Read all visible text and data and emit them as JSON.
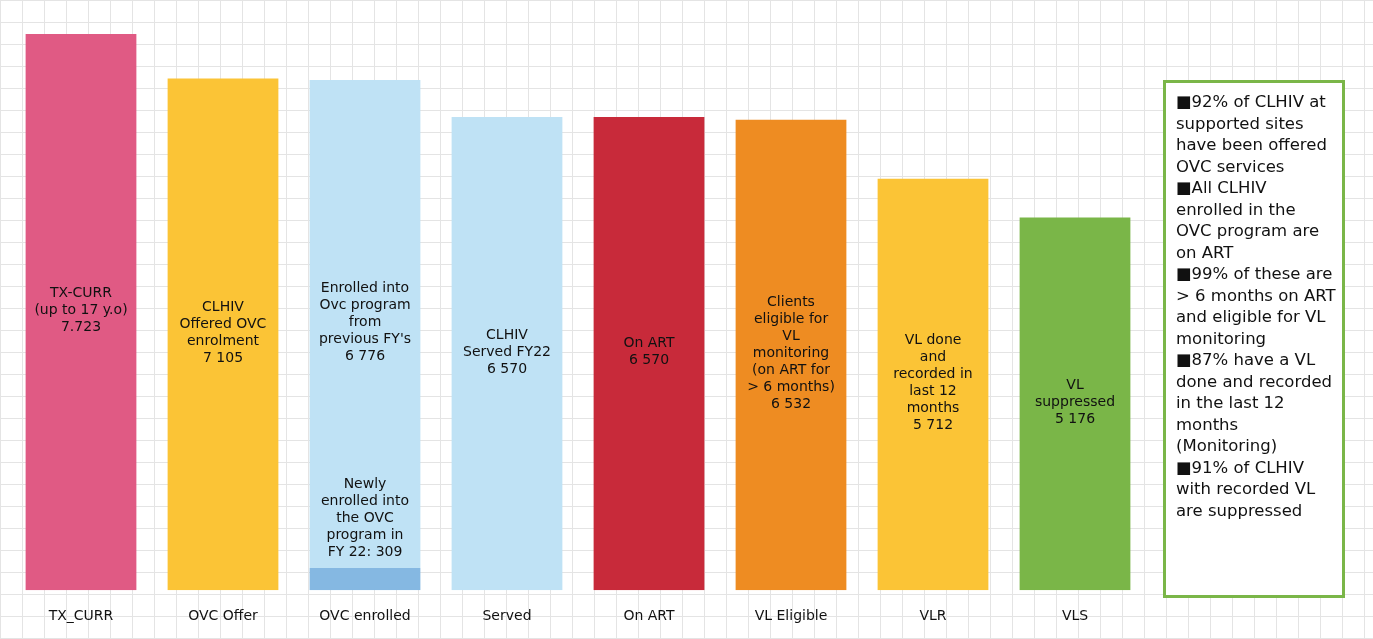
{
  "chart_data": {
    "type": "bar",
    "stacked": true,
    "categories": [
      "TX_CURR",
      "OVC Offer",
      "OVC enrolled",
      "Served",
      "On ART",
      "VL Eligible",
      "VLR",
      "VLS"
    ],
    "series": [
      {
        "colors": [
          "#e05a84",
          "#fbc436",
          "#85b8e2",
          "#bfe2f5",
          "#c82a3a",
          "#ee8c22",
          "#fbc436",
          "#7ab648"
        ],
        "values": [
          7723,
          7105,
          309,
          6570,
          6570,
          6532,
          5712,
          5176
        ],
        "value_labels": [
          "TX-CURR\n(up to 17 y.o)\n7.723",
          "CLHIV\nOffered OVC\nenrolment\n7 105",
          "Newly\nenrolled into\nthe OVC\nprogram in\nFY 22: 309",
          "CLHIV\nServed FY22\n6 570",
          "On ART\n6 570",
          "Clients\neligible for\nVL\nmonitoring\n(on ART for\n> 6 months)\n6 532",
          "VL done\nand\nrecorded in\nlast 12\nmonths\n5 712",
          "VL\nsuppressed\n5 176"
        ]
      },
      {
        "color": "#bfe2f5",
        "values": [
          null,
          null,
          6776,
          null,
          null,
          null,
          null,
          null
        ],
        "value_labels": [
          null,
          null,
          "Enrolled into\nOvc program\nfrom\nprevious FY's\n6 776",
          null,
          null,
          null,
          null,
          null
        ]
      }
    ],
    "annotations": [
      "■92% of CLHIV at supported sites have been offered OVC services",
      "■All CLHIV enrolled in the OVC program are on ART",
      "■99% of these are > 6 months on ART and eligible for VL monitoring",
      "■87% have a VL done and recorded in the last 12 months (Monitoring)",
      "■91% of CLHIV with recorded VL are suppressed"
    ]
  }
}
